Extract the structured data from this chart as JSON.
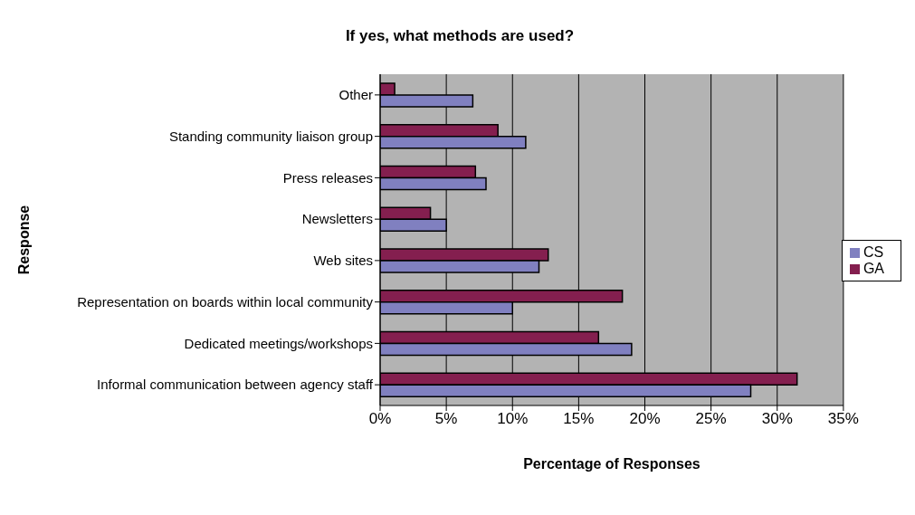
{
  "chart_data": {
    "type": "bar",
    "orientation": "horizontal",
    "title": "If yes, what methods are used?",
    "xlabel": "Percentage of Responses",
    "ylabel": "Response",
    "categories": [
      "Other",
      "Standing community liaison group",
      "Press releases",
      "Newsletters",
      "Web sites",
      "Representation on boards within local community",
      "Dedicated meetings/workshops",
      "Informal communication between agency staff"
    ],
    "series": [
      {
        "name": "GA",
        "color": "#841f4f",
        "values": [
          1.1,
          8.9,
          7.2,
          3.8,
          12.7,
          18.3,
          16.5,
          31.5
        ]
      },
      {
        "name": "CS",
        "color": "#8080c0",
        "values": [
          7.0,
          11.0,
          8.0,
          5.0,
          12.0,
          10.0,
          19.0,
          28.0
        ]
      }
    ],
    "xlim": [
      0,
      35
    ],
    "xticks": [
      {
        "value": 0,
        "label": "0%"
      },
      {
        "value": 5,
        "label": "5%"
      },
      {
        "value": 10,
        "label": "10%"
      },
      {
        "value": 15,
        "label": "15%"
      },
      {
        "value": 20,
        "label": "20%"
      },
      {
        "value": 25,
        "label": "25%"
      },
      {
        "value": 30,
        "label": "30%"
      },
      {
        "value": 35,
        "label": "35%"
      }
    ],
    "grid": "x",
    "legend": "right"
  }
}
